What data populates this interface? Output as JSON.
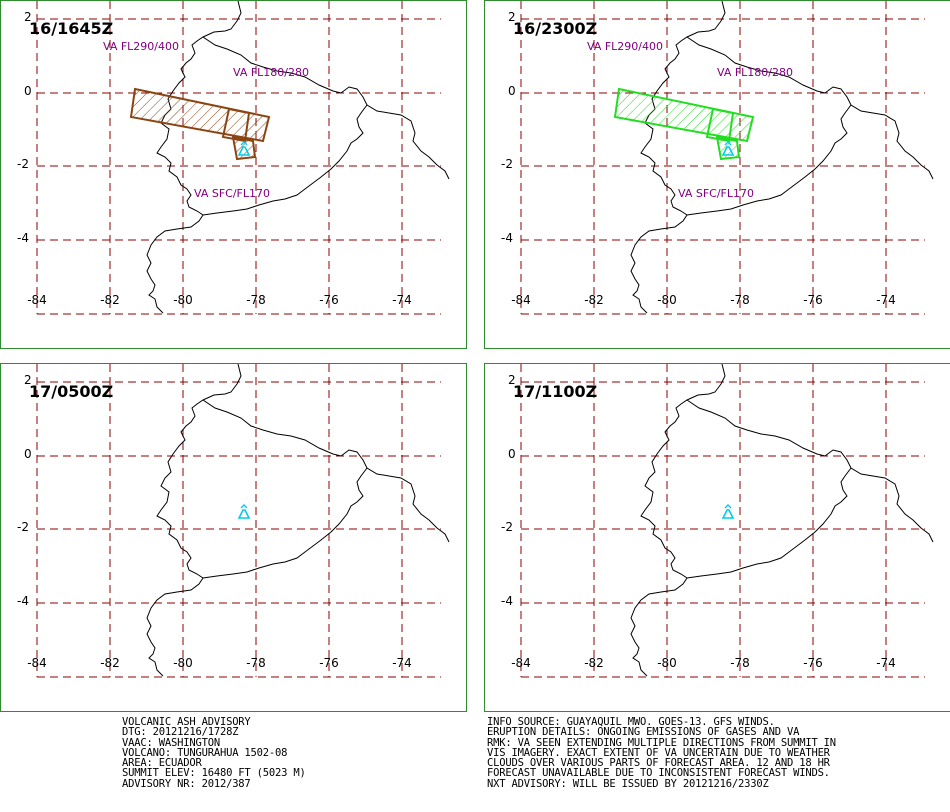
{
  "panels": [
    {
      "title": "16/1645Z",
      "labels": [
        {
          "text": "VA FL290/400",
          "pos": "nw"
        },
        {
          "text": "VA FL180/280",
          "pos": "ne"
        },
        {
          "text": "VA SFC/FL170",
          "pos": "sw"
        }
      ],
      "polygon_color": "#8b4513",
      "x_ticks": [
        "-84",
        "-82",
        "-80",
        "-78",
        "-76",
        "-74"
      ],
      "y_ticks": [
        "2",
        "0",
        "-2",
        "-4"
      ]
    },
    {
      "title": "16/2300Z",
      "labels": [
        {
          "text": "VA FL290/400",
          "pos": "nw"
        },
        {
          "text": "VA FL180/280",
          "pos": "ne"
        },
        {
          "text": "VA SFC/FL170",
          "pos": "sw"
        }
      ],
      "polygon_color": "#22dd22",
      "x_ticks": [
        "-84",
        "-82",
        "-80",
        "-78",
        "-76",
        "-74"
      ],
      "y_ticks": [
        "2",
        "0",
        "-2",
        "-4"
      ]
    },
    {
      "title": "17/0500Z",
      "labels": [],
      "x_ticks": [
        "-84",
        "-82",
        "-80",
        "-78",
        "-76",
        "-74"
      ],
      "y_ticks": [
        "2",
        "0",
        "-2",
        "-4"
      ]
    },
    {
      "title": "17/1100Z",
      "labels": [],
      "x_ticks": [
        "-84",
        "-82",
        "-80",
        "-78",
        "-76",
        "-74"
      ],
      "y_ticks": [
        "2",
        "0",
        "-2",
        "-4"
      ]
    }
  ],
  "colors": {
    "grid": "#8b0000",
    "border": "#2e8b2e",
    "volcano": "#00ccee",
    "label": "#800080"
  },
  "volcano_icon": "volcano-icon",
  "advisory_left": [
    "VOLCANIC ASH ADVISORY",
    "DTG: 20121216/1728Z",
    "VAAC: WASHINGTON",
    "VOLCANO: TUNGURAHUA 1502-08",
    "AREA: ECUADOR",
    "SUMMIT ELEV: 16480 FT (5023 M)",
    "ADVISORY NR: 2012/387"
  ],
  "advisory_right": [
    "INFO SOURCE: GUAYAQUIL MWO. GOES-13. GFS WINDS.",
    "ERUPTION DETAILS: ONGOING EMISSIONS OF GASES AND VA",
    "RMK: VA SEEN EXTENDING MULTIPLE DIRECTIONS FROM SUMMIT IN",
    "VIS IMAGERY. EXACT EXTENT OF VA UNCERTAIN DUE TO WEATHER",
    "CLOUDS OVER VARIOUS PARTS OF FORECAST AREA. 12 AND 18 HR",
    "FORECAST UNAVAILABLE DUE TO INCONSISTENT FORECAST WINDS.",
    "NXT ADVISORY: WILL BE ISSUED BY 20121216/2330Z"
  ]
}
